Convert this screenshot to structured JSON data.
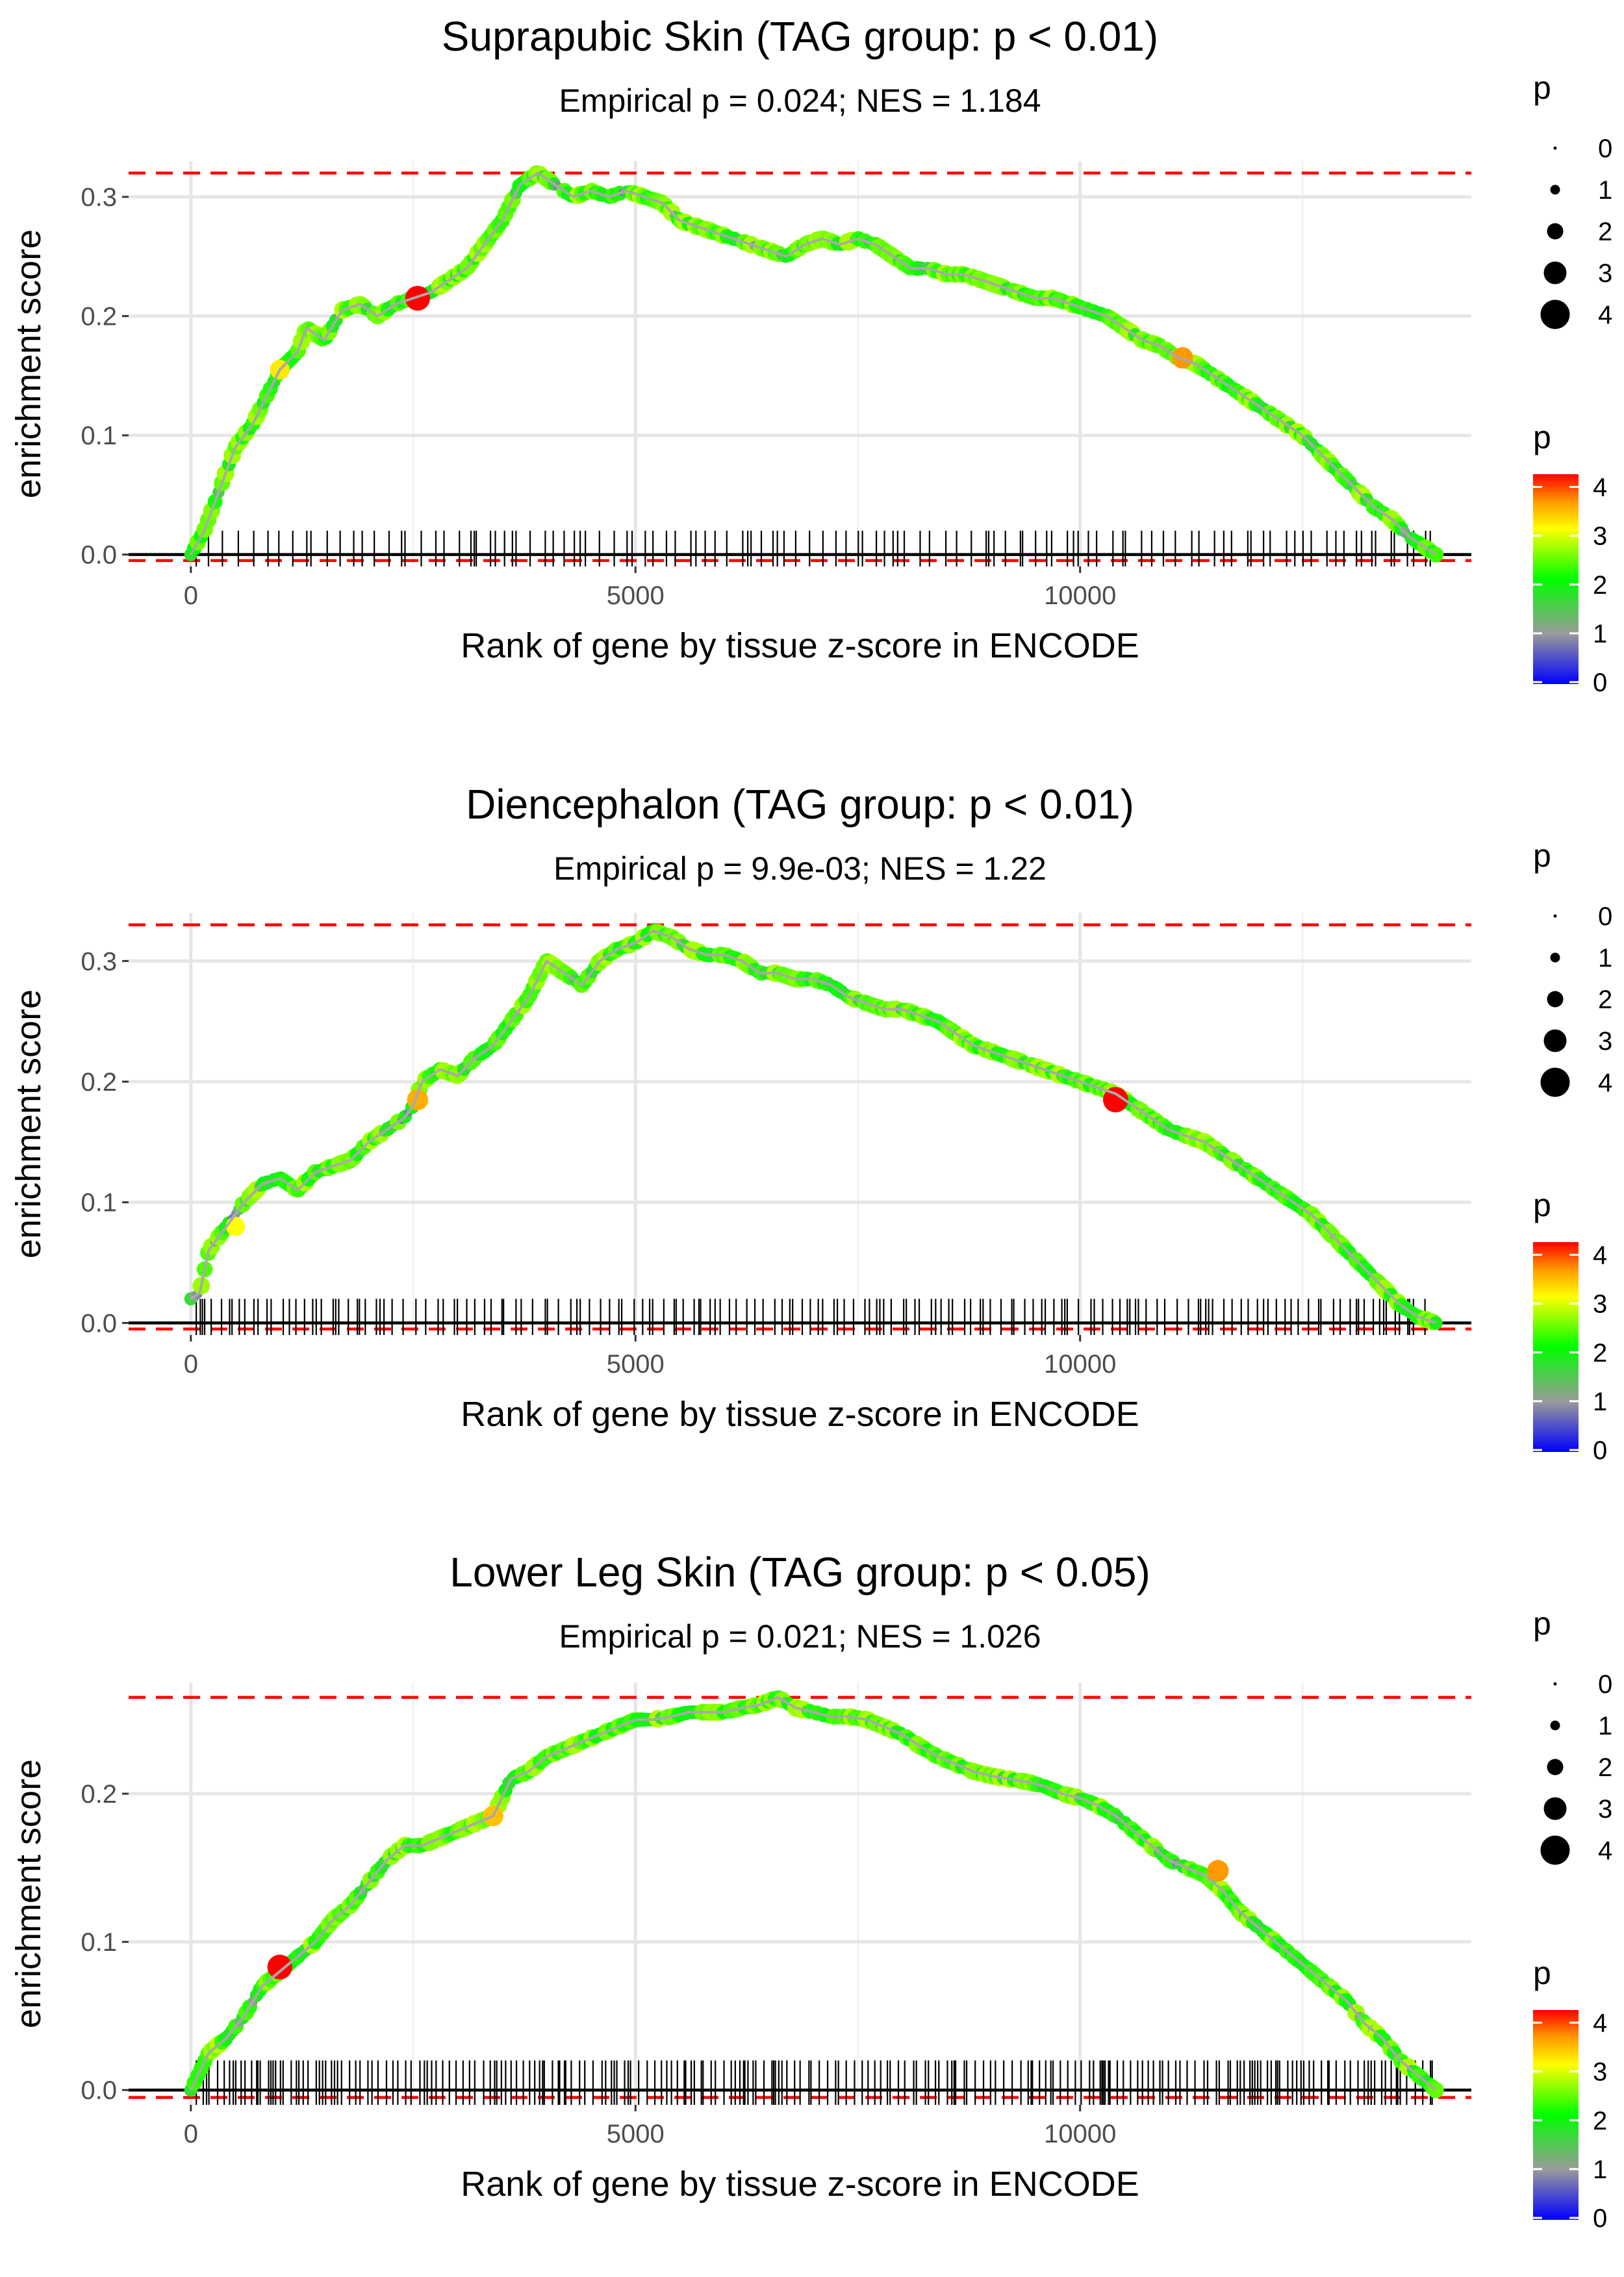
{
  "chart_data": [
    {
      "type": "line",
      "title": "Suprapubic Skin (TAG group: p < 0.01)",
      "subtitle": "Empirical p = 0.024; NES = 1.184",
      "xlabel": "Rank of gene by tissue z-score in ENCODE",
      "ylabel": "enrichment score",
      "xlim": [
        -700,
        14400
      ],
      "ylim": [
        -0.01,
        0.33
      ],
      "x_ticks": [
        0,
        5000,
        10000
      ],
      "x_tick_labels": [
        "0",
        "5000",
        "10000"
      ],
      "y_ticks": [
        0.0,
        0.1,
        0.2,
        0.3
      ],
      "y_tick_labels": [
        "0.0",
        "0.1",
        "0.2",
        "0.3"
      ],
      "max_es": 0.32,
      "min_es": -0.005,
      "x_end": 14000,
      "curve_x": [
        0,
        150,
        300,
        500,
        700,
        900,
        1000,
        1200,
        1300,
        1500,
        1700,
        1900,
        2100,
        2300,
        2500,
        2700,
        2900,
        3100,
        3300,
        3500,
        3700,
        3900,
        4100,
        4300,
        4500,
        4700,
        4900,
        5100,
        5300,
        5500,
        5700,
        5900,
        6100,
        6300,
        6500,
        6700,
        6900,
        7100,
        7300,
        7500,
        7700,
        7900,
        8100,
        8300,
        8500,
        8700,
        8900,
        9100,
        9300,
        9500,
        9700,
        9900,
        10100,
        10300,
        10500,
        10700,
        10900,
        11100,
        11300,
        11500,
        11700,
        11900,
        12100,
        12300,
        12500,
        12700,
        12900,
        13100,
        13300,
        13500,
        13700,
        13900,
        14000
      ],
      "curve_y": [
        0.0,
        0.02,
        0.05,
        0.09,
        0.11,
        0.14,
        0.155,
        0.17,
        0.19,
        0.18,
        0.205,
        0.21,
        0.2,
        0.21,
        0.215,
        0.22,
        0.23,
        0.24,
        0.26,
        0.28,
        0.31,
        0.32,
        0.31,
        0.3,
        0.305,
        0.3,
        0.305,
        0.3,
        0.295,
        0.28,
        0.275,
        0.27,
        0.265,
        0.26,
        0.255,
        0.25,
        0.26,
        0.265,
        0.26,
        0.265,
        0.26,
        0.25,
        0.24,
        0.24,
        0.235,
        0.235,
        0.23,
        0.225,
        0.22,
        0.215,
        0.215,
        0.21,
        0.205,
        0.2,
        0.19,
        0.18,
        0.175,
        0.165,
        0.16,
        0.15,
        0.14,
        0.13,
        0.12,
        0.11,
        0.1,
        0.085,
        0.07,
        0.055,
        0.04,
        0.03,
        0.015,
        0.005,
        0.0
      ],
      "highlights": [
        {
          "x": 2550,
          "y": 0.215,
          "p": 4.2
        },
        {
          "x": 11150,
          "y": 0.165,
          "p": 3.5
        },
        {
          "x": 1000,
          "y": 0.155,
          "p": 3.1
        }
      ],
      "size_legend": {
        "title": "p",
        "labels": [
          "0",
          "1",
          "2",
          "3",
          "4"
        ]
      },
      "color_legend": {
        "title": "p",
        "labels": [
          "4",
          "3",
          "2",
          "1",
          "0"
        ]
      }
    },
    {
      "type": "line",
      "title": "Diencephalon (TAG group: p < 0.01)",
      "subtitle": "Empirical p = 9.9e-03; NES = 1.22",
      "xlabel": "Rank of gene by tissue z-score in ENCODE",
      "ylabel": "enrichment score",
      "xlim": [
        -700,
        14400
      ],
      "ylim": [
        -0.01,
        0.34
      ],
      "x_ticks": [
        0,
        5000,
        10000
      ],
      "x_tick_labels": [
        "0",
        "5000",
        "10000"
      ],
      "y_ticks": [
        0.0,
        0.1,
        0.2,
        0.3
      ],
      "y_tick_labels": [
        "0.0",
        "0.1",
        "0.2",
        "0.3"
      ],
      "max_es": 0.33,
      "min_es": -0.005,
      "x_end": 14000,
      "curve_x": [
        0,
        100,
        200,
        400,
        600,
        800,
        1000,
        1200,
        1400,
        1600,
        1800,
        2000,
        2200,
        2400,
        2500,
        2600,
        2800,
        3000,
        3200,
        3400,
        3600,
        3800,
        4000,
        4200,
        4400,
        4600,
        4800,
        5000,
        5200,
        5400,
        5600,
        5800,
        6000,
        6200,
        6400,
        6600,
        6800,
        7000,
        7200,
        7400,
        7600,
        7800,
        8000,
        8200,
        8400,
        8600,
        8800,
        9000,
        9200,
        9400,
        9600,
        9800,
        10000,
        10200,
        10400,
        10600,
        10800,
        11000,
        11200,
        11400,
        11600,
        11800,
        12000,
        12200,
        12400,
        12600,
        12800,
        13000,
        13200,
        13400,
        13600,
        13800,
        14000
      ],
      "curve_y": [
        0.02,
        0.025,
        0.06,
        0.08,
        0.1,
        0.115,
        0.12,
        0.11,
        0.125,
        0.13,
        0.135,
        0.15,
        0.16,
        0.17,
        0.18,
        0.2,
        0.21,
        0.205,
        0.22,
        0.23,
        0.25,
        0.27,
        0.3,
        0.29,
        0.28,
        0.3,
        0.31,
        0.315,
        0.325,
        0.32,
        0.31,
        0.305,
        0.305,
        0.3,
        0.29,
        0.29,
        0.285,
        0.285,
        0.28,
        0.27,
        0.265,
        0.26,
        0.26,
        0.255,
        0.25,
        0.24,
        0.23,
        0.225,
        0.22,
        0.215,
        0.21,
        0.205,
        0.2,
        0.195,
        0.19,
        0.18,
        0.17,
        0.16,
        0.155,
        0.15,
        0.14,
        0.13,
        0.12,
        0.11,
        0.1,
        0.09,
        0.075,
        0.06,
        0.045,
        0.03,
        0.015,
        0.005,
        0.0
      ],
      "highlights": [
        {
          "x": 10400,
          "y": 0.185,
          "p": 4.3
        },
        {
          "x": 2550,
          "y": 0.185,
          "p": 3.4
        },
        {
          "x": 500,
          "y": 0.08,
          "p": 3.0
        }
      ],
      "size_legend": {
        "title": "p",
        "labels": [
          "0",
          "1",
          "2",
          "3",
          "4"
        ]
      },
      "color_legend": {
        "title": "p",
        "labels": [
          "4",
          "3",
          "2",
          "1",
          "0"
        ]
      }
    },
    {
      "type": "line",
      "title": "Lower Leg Skin (TAG group: p < 0.05)",
      "subtitle": "Empirical p = 0.021; NES = 1.026",
      "xlabel": "Rank of gene by tissue z-score in ENCODE",
      "ylabel": "enrichment score",
      "xlim": [
        -700,
        14400
      ],
      "ylim": [
        -0.01,
        0.275
      ],
      "x_ticks": [
        0,
        5000,
        10000
      ],
      "x_tick_labels": [
        "0",
        "5000",
        "10000"
      ],
      "y_ticks": [
        0.0,
        0.1,
        0.2
      ],
      "y_tick_labels": [
        "0.0",
        "0.1",
        "0.2"
      ],
      "max_es": 0.265,
      "min_es": -0.005,
      "x_end": 14000,
      "curve_x": [
        0,
        200,
        400,
        600,
        800,
        1000,
        1200,
        1400,
        1600,
        1800,
        2000,
        2200,
        2400,
        2600,
        2800,
        3000,
        3200,
        3400,
        3600,
        3800,
        4000,
        4200,
        4400,
        4600,
        4800,
        5000,
        5200,
        5400,
        5600,
        5800,
        6000,
        6200,
        6400,
        6600,
        6800,
        7000,
        7200,
        7400,
        7600,
        7800,
        8000,
        8200,
        8400,
        8600,
        8800,
        9000,
        9200,
        9400,
        9600,
        9800,
        10000,
        10200,
        10400,
        10600,
        10800,
        11000,
        11200,
        11400,
        11600,
        11800,
        12000,
        12200,
        12400,
        12600,
        12800,
        13000,
        13200,
        13400,
        13600,
        13800,
        14000
      ],
      "curve_y": [
        0.0,
        0.025,
        0.035,
        0.05,
        0.07,
        0.08,
        0.09,
        0.1,
        0.115,
        0.125,
        0.14,
        0.155,
        0.165,
        0.165,
        0.17,
        0.175,
        0.18,
        0.185,
        0.21,
        0.215,
        0.225,
        0.23,
        0.235,
        0.24,
        0.245,
        0.25,
        0.25,
        0.252,
        0.255,
        0.255,
        0.255,
        0.258,
        0.26,
        0.265,
        0.258,
        0.255,
        0.252,
        0.252,
        0.25,
        0.245,
        0.24,
        0.232,
        0.225,
        0.22,
        0.215,
        0.212,
        0.21,
        0.208,
        0.205,
        0.2,
        0.197,
        0.192,
        0.185,
        0.175,
        0.165,
        0.155,
        0.15,
        0.145,
        0.135,
        0.12,
        0.11,
        0.1,
        0.09,
        0.08,
        0.07,
        0.06,
        0.045,
        0.035,
        0.02,
        0.01,
        0.0
      ],
      "highlights": [
        {
          "x": 1000,
          "y": 0.083,
          "p": 4.2
        },
        {
          "x": 11550,
          "y": 0.148,
          "p": 3.5
        },
        {
          "x": 3400,
          "y": 0.185,
          "p": 3.3
        }
      ],
      "size_legend": {
        "title": "p",
        "labels": [
          "0",
          "1",
          "2",
          "3",
          "4"
        ]
      },
      "color_legend": {
        "title": "p",
        "labels": [
          "4",
          "3",
          "2",
          "1",
          "0"
        ]
      }
    }
  ]
}
